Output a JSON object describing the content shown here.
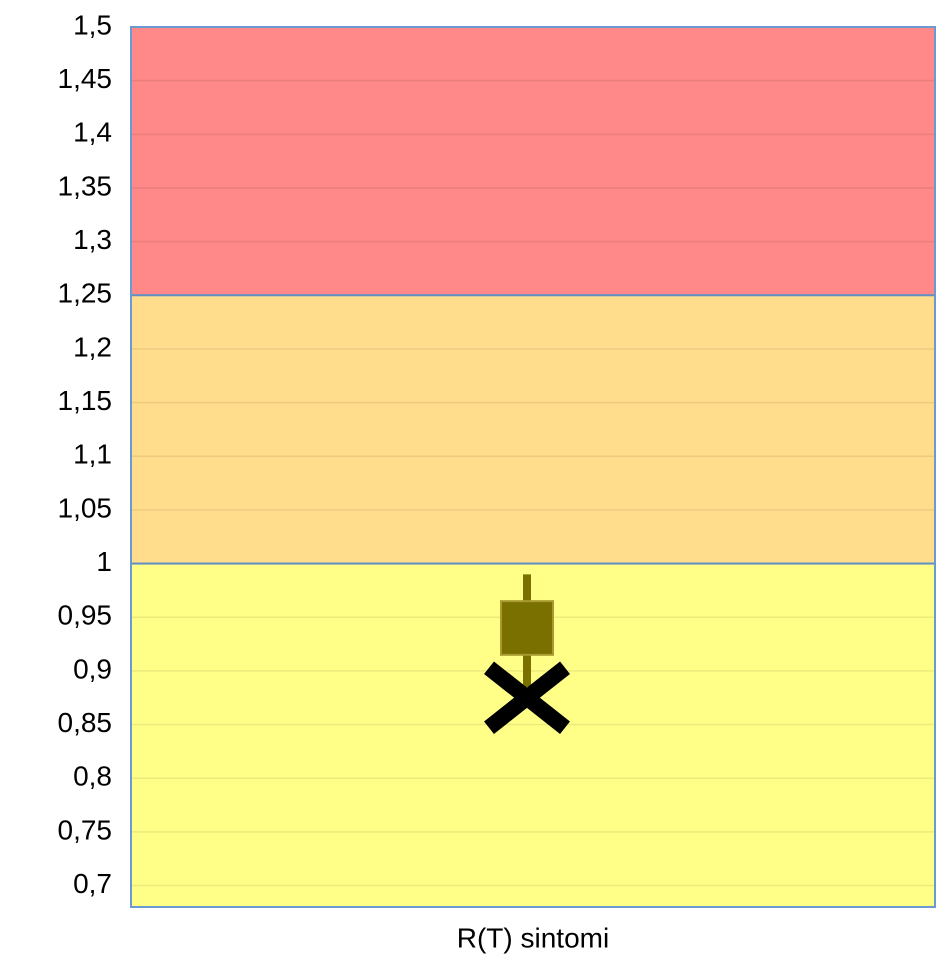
{
  "chart_data": {
    "type": "box",
    "categories": [
      "R(T) sintomi"
    ],
    "series": [
      {
        "color": "#7a7000",
        "low": [
          0.885
        ],
        "q1": [
          0.915
        ],
        "q3": [
          0.965
        ],
        "high": [
          0.99
        ],
        "marker": [
          0.875
        ],
        "marker_color": "#000000"
      }
    ],
    "bands": [
      {
        "from": 1.25,
        "to": 1.5,
        "color": "#ff8888"
      },
      {
        "from": 1.0,
        "to": 1.25,
        "color": "#ffdd8c"
      },
      {
        "from": 0.68,
        "to": 1.0,
        "color": "#ffff88"
      }
    ],
    "ylim": [
      0.68,
      1.5
    ],
    "yticks": [
      {
        "value": 0.7,
        "label": "0,7"
      },
      {
        "value": 0.75,
        "label": "0,75"
      },
      {
        "value": 0.8,
        "label": "0,8"
      },
      {
        "value": 0.85,
        "label": "0,85"
      },
      {
        "value": 0.9,
        "label": "0,9"
      },
      {
        "value": 0.95,
        "label": "0,95"
      },
      1,
      {
        "value": 1.05,
        "label": "1,05"
      },
      {
        "value": 1.1,
        "label": "1,1"
      },
      {
        "value": 1.15,
        "label": "1,15"
      },
      {
        "value": 1.2,
        "label": "1,2"
      },
      {
        "value": 1.25,
        "label": "1,25"
      },
      {
        "value": 1.3,
        "label": "1,3"
      },
      {
        "value": 1.35,
        "label": "1,35"
      },
      {
        "value": 1.4,
        "label": "1,4"
      },
      {
        "value": 1.45,
        "label": "1,45"
      },
      {
        "value": 1.5,
        "label": "1,5"
      }
    ],
    "grid": true
  }
}
